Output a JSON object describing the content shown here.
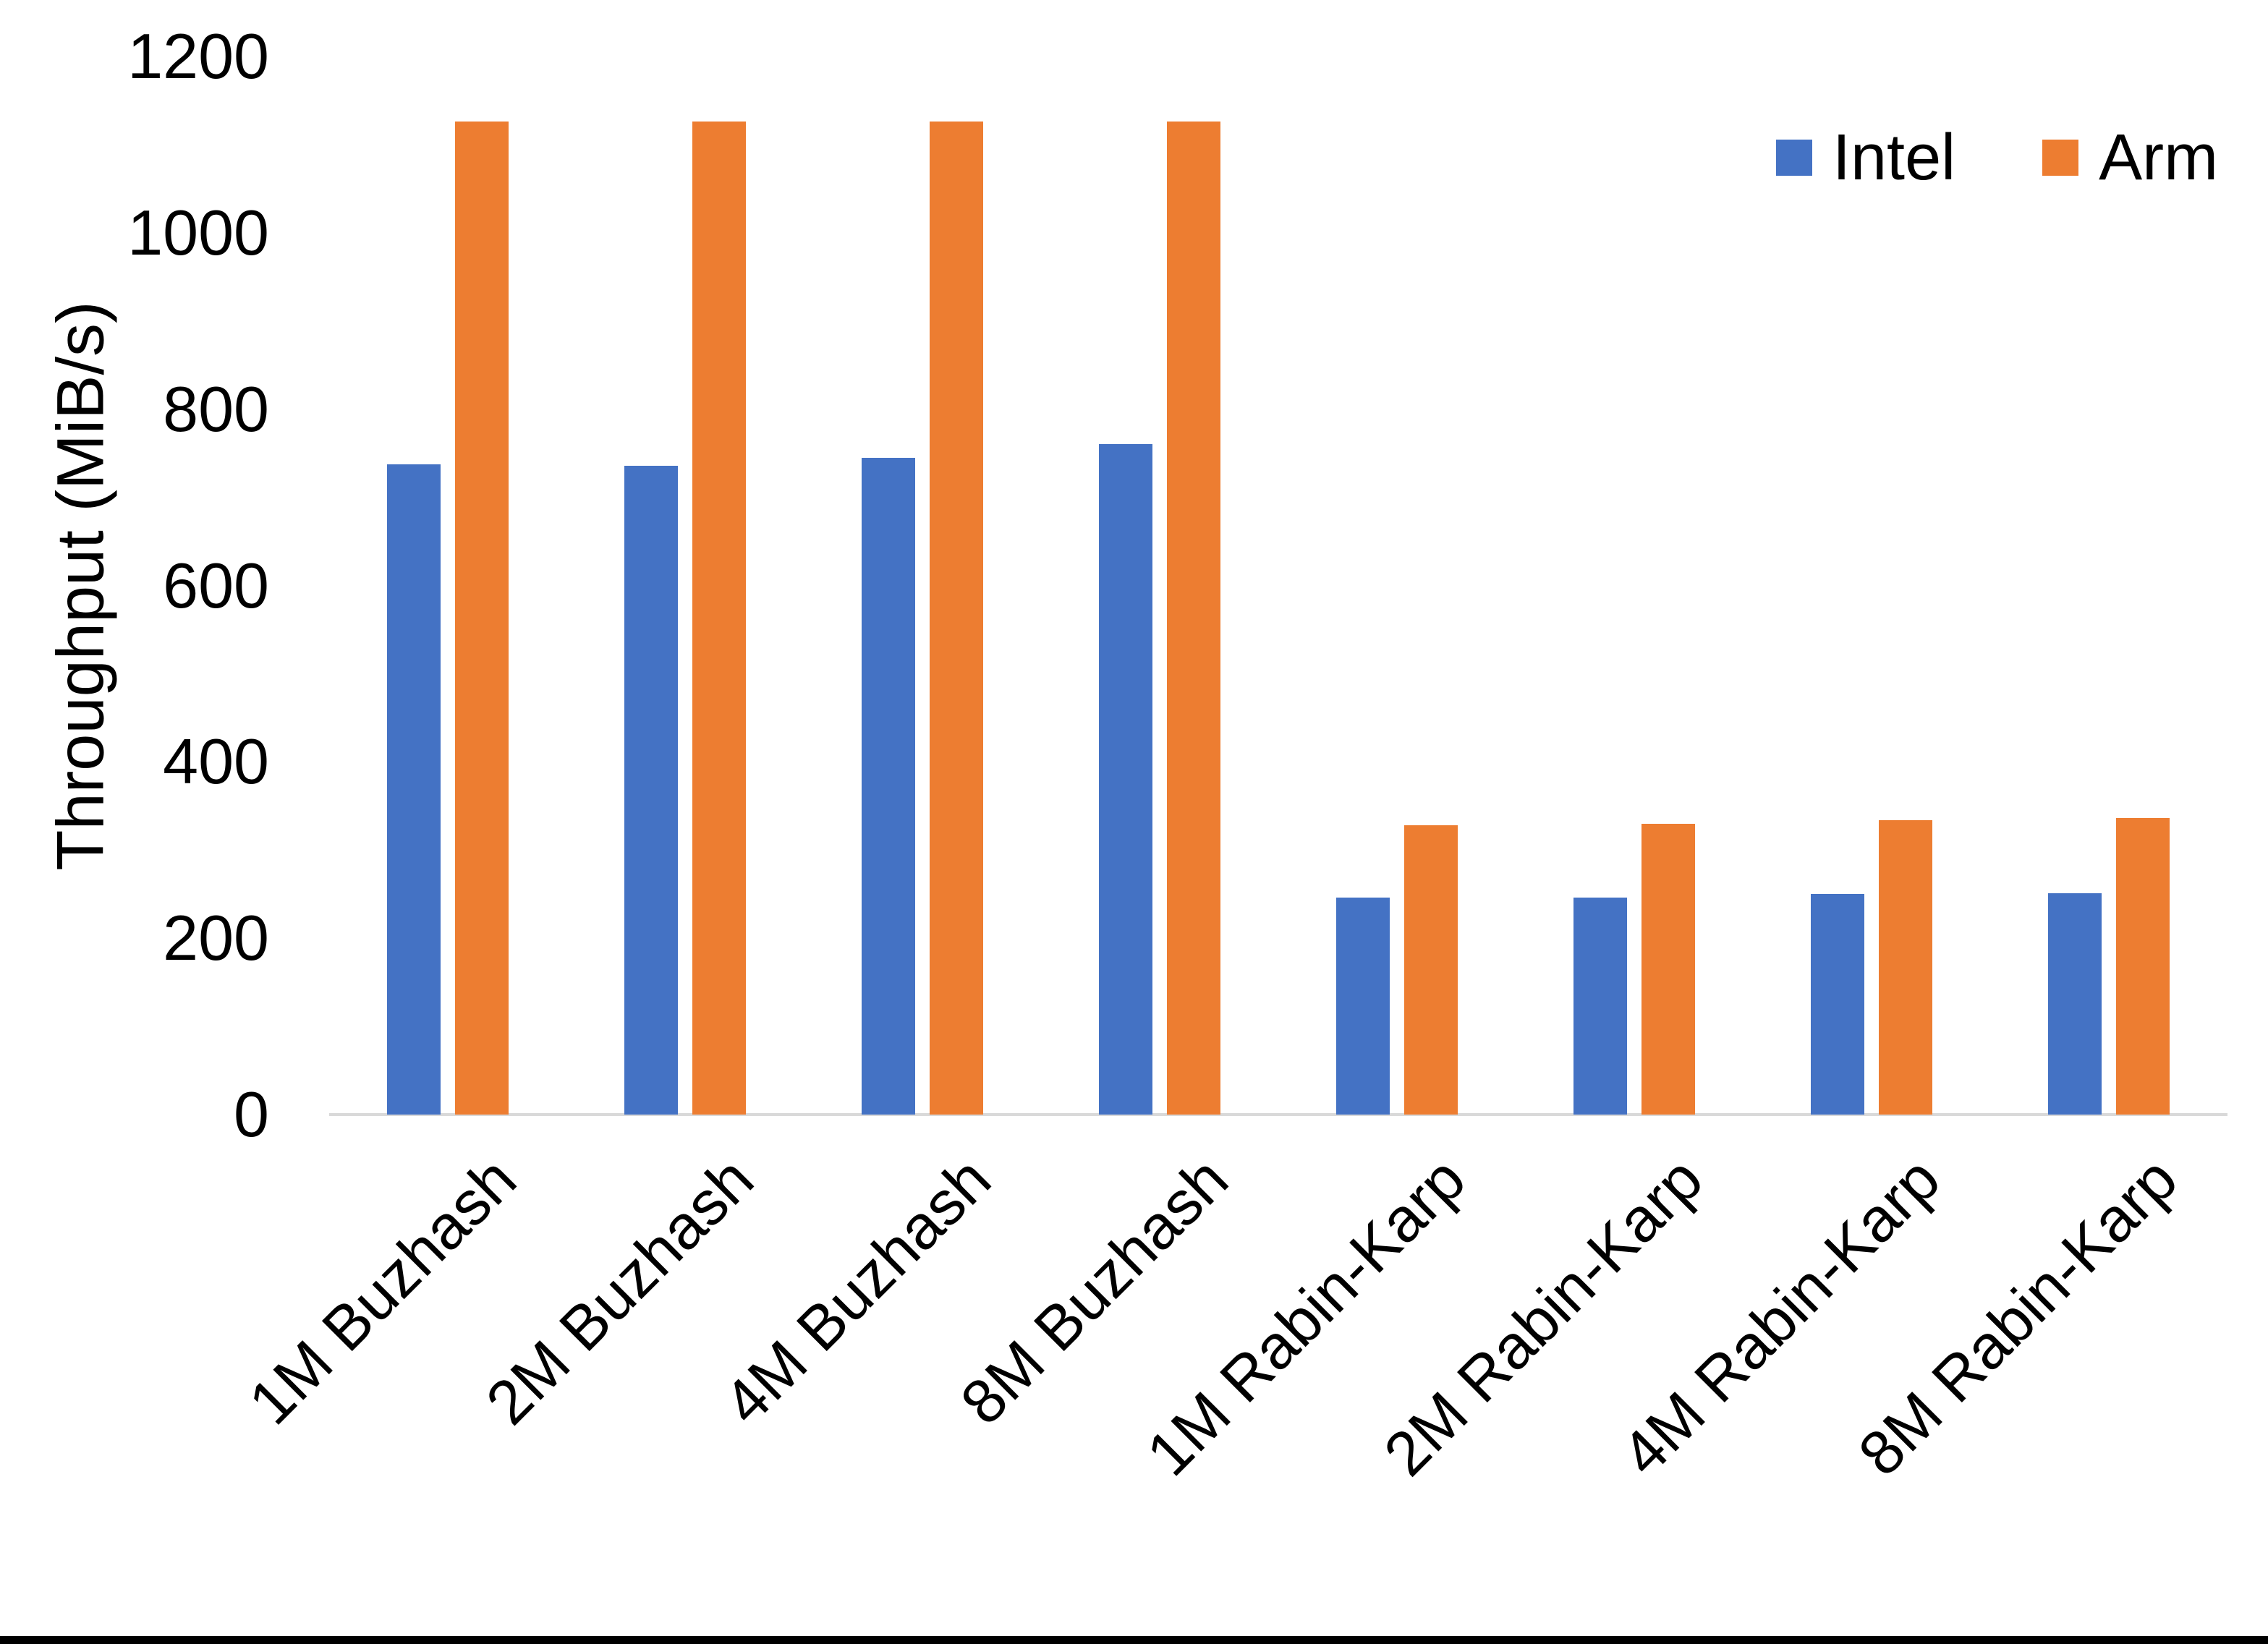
{
  "chart_data": {
    "type": "bar",
    "title": "",
    "xlabel": "",
    "ylabel": "Throughput (MiB/s)",
    "categories": [
      "1M Buzhash",
      "2M Buzhash",
      "4M Buzhash",
      "8M Buzhash",
      "1M Rabin-Karp",
      "2M Rabin-Karp",
      "4M Rabin-Karp",
      "8M Rabin-Karp"
    ],
    "series": [
      {
        "name": "Intel",
        "color": "#4472C4",
        "values": [
          737,
          736,
          745,
          760,
          246,
          246,
          250,
          251
        ]
      },
      {
        "name": "Arm",
        "color": "#ED7D31",
        "values": [
          1126,
          1126,
          1126,
          1126,
          328,
          330,
          334,
          336
        ]
      }
    ],
    "ylim": [
      0,
      1200
    ],
    "yticks": [
      0,
      200,
      400,
      600,
      800,
      1000,
      1200
    ],
    "grid": false,
    "legend_position": "top-right",
    "x_tick_rotation_deg": 45,
    "axis_line_color": "#d9d9d9"
  }
}
